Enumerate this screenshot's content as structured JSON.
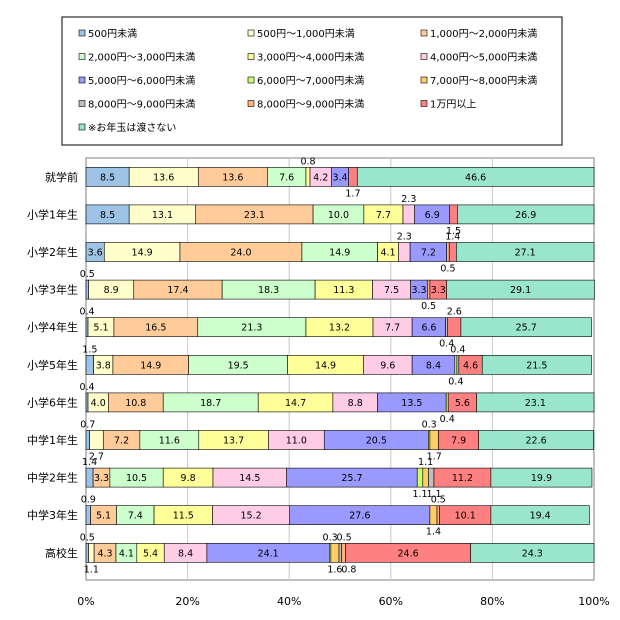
{
  "chart_data": {
    "type": "bar",
    "stacked": true,
    "orientation": "horizontal",
    "percent_scale": true,
    "xlim": [
      0,
      100
    ],
    "xticks": [
      "0%",
      "20%",
      "40%",
      "60%",
      "80%",
      "100%"
    ],
    "grid": true,
    "legend_position": "top",
    "categories": [
      "就学前",
      "小学1年生",
      "小学2年生",
      "小学3年生",
      "小学4年生",
      "小学5年生",
      "小学6年生",
      "中学1年生",
      "中学2年生",
      "中学3年生",
      "高校生"
    ],
    "series": [
      {
        "name": "500円未満",
        "color": "#9DC3E6",
        "values": [
          8.5,
          8.5,
          3.6,
          0.5,
          0.4,
          1.5,
          0.4,
          0.7,
          1.4,
          0.9,
          0.5
        ]
      },
      {
        "name": "500円～1,000円未満",
        "color": "#FFFFCC",
        "values": [
          13.6,
          13.1,
          14.9,
          8.9,
          5.1,
          3.8,
          4.0,
          2.7,
          0,
          0,
          1.1
        ]
      },
      {
        "name": "1,000円～2,000円未満",
        "color": "#FFCC99",
        "values": [
          13.6,
          23.1,
          24.0,
          17.4,
          16.5,
          14.9,
          10.8,
          7.2,
          3.3,
          5.1,
          4.3
        ]
      },
      {
        "name": "2,000円～3,000円未満",
        "color": "#CCFFCC",
        "values": [
          7.6,
          10.0,
          14.9,
          18.3,
          21.3,
          19.5,
          18.7,
          11.6,
          10.5,
          7.4,
          4.1
        ]
      },
      {
        "name": "3,000円～4,000円未満",
        "color": "#FFFF99",
        "values": [
          0.8,
          7.7,
          4.1,
          11.3,
          13.2,
          14.9,
          14.7,
          13.7,
          9.8,
          11.5,
          5.4
        ]
      },
      {
        "name": "4,000円～5,000円未満",
        "color": "#FFCCE6",
        "values": [
          4.2,
          2.3,
          2.3,
          7.5,
          7.7,
          9.6,
          8.8,
          11.0,
          14.5,
          15.2,
          8.4
        ]
      },
      {
        "name": "5,000円～6,000円未満",
        "color": "#9999FF",
        "values": [
          3.4,
          6.9,
          7.2,
          3.3,
          6.6,
          8.4,
          13.5,
          20.5,
          25.7,
          27.6,
          24.1
        ]
      },
      {
        "name": "6,000円～7,000円未満",
        "color": "#CCFF66",
        "values": [
          0,
          0,
          0,
          0,
          0,
          0.4,
          0.4,
          0.3,
          1.1,
          0,
          0.3
        ]
      },
      {
        "name": "7,000円～8,000円未満",
        "color": "#FFCC66",
        "values": [
          0,
          0,
          0,
          0,
          0,
          0,
          0,
          1.7,
          1.1,
          1.4,
          1.6
        ]
      },
      {
        "name": "8,000円～9,000円未満",
        "color": "#BFBFBF",
        "values": [
          0,
          0,
          0,
          0,
          0.4,
          0.4,
          0,
          0,
          1.1,
          0,
          0.5
        ]
      },
      {
        "name": "8,000円～9,000円未満",
        "color": "#FFB27F",
        "values": [
          0,
          0,
          0.5,
          0.5,
          0,
          0,
          0,
          0,
          0,
          0.5,
          0.8
        ]
      },
      {
        "name": "1万円以上",
        "color": "#FF8080",
        "values": [
          1.7,
          1.5,
          1.4,
          3.3,
          2.6,
          4.6,
          5.6,
          7.9,
          11.2,
          10.1,
          24.6
        ]
      },
      {
        "name": "※お年玉は渡さない",
        "color": "#99E6CC",
        "values": [
          46.6,
          26.9,
          27.1,
          29.1,
          25.7,
          21.5,
          23.1,
          22.6,
          19.9,
          19.4,
          24.3
        ]
      }
    ]
  }
}
